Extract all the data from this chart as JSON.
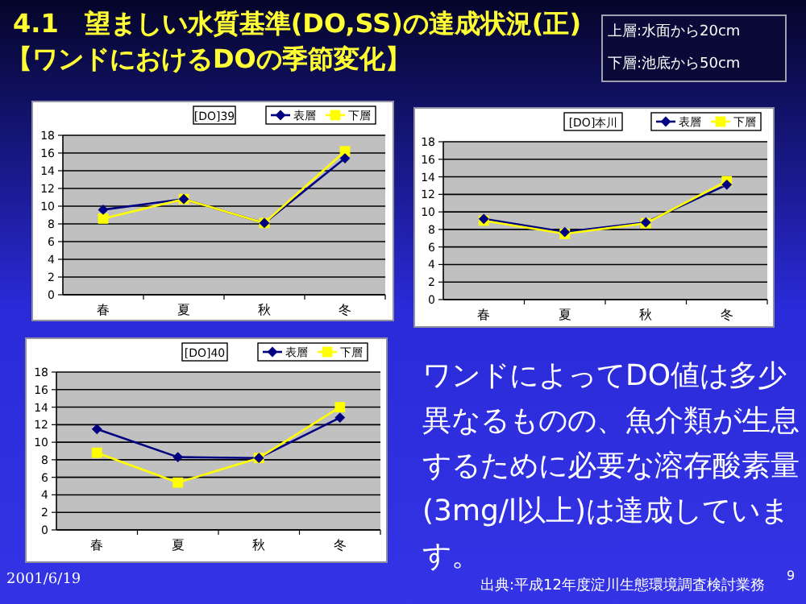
{
  "chart_data": [
    {
      "type": "line",
      "title": "[DO]39",
      "categories": [
        "春",
        "夏",
        "秋",
        "冬"
      ],
      "ylim": [
        0,
        18
      ],
      "yticks": [
        0,
        2,
        4,
        6,
        8,
        10,
        12,
        14,
        16,
        18
      ],
      "grid": "y",
      "legend": "top right",
      "series": [
        {
          "name": "表層",
          "color": "#000080",
          "marker": "diamond",
          "values": [
            9.6,
            10.8,
            8.1,
            15.4
          ]
        },
        {
          "name": "下層",
          "color": "#ffff00",
          "marker": "square",
          "values": [
            8.6,
            10.8,
            8.1,
            16.2
          ]
        }
      ]
    },
    {
      "type": "line",
      "title": "[DO]本川",
      "categories": [
        "春",
        "夏",
        "秋",
        "冬"
      ],
      "ylim": [
        0,
        18
      ],
      "yticks": [
        0,
        2,
        4,
        6,
        8,
        10,
        12,
        14,
        16,
        18
      ],
      "grid": "y",
      "legend": "top right",
      "series": [
        {
          "name": "表層",
          "color": "#000080",
          "marker": "diamond",
          "values": [
            9.2,
            7.7,
            8.8,
            13.1
          ]
        },
        {
          "name": "下層",
          "color": "#ffff00",
          "marker": "square",
          "values": [
            9.0,
            7.5,
            8.7,
            13.5
          ]
        }
      ]
    },
    {
      "type": "line",
      "title": "[DO]40",
      "categories": [
        "春",
        "夏",
        "秋",
        "冬"
      ],
      "ylim": [
        0,
        18
      ],
      "yticks": [
        0,
        2,
        4,
        6,
        8,
        10,
        12,
        14,
        16,
        18
      ],
      "grid": "y",
      "legend": "top right",
      "series": [
        {
          "name": "表層",
          "color": "#000080",
          "marker": "diamond",
          "values": [
            11.5,
            8.3,
            8.2,
            12.8
          ]
        },
        {
          "name": "下層",
          "color": "#ffff00",
          "marker": "square",
          "values": [
            8.8,
            5.4,
            8.2,
            14.0
          ]
        }
      ]
    },
    {
      "type": "other",
      "title": "4.1　望ましい水質基準(DO,SS)の達成状況(正)",
      "subtitle": "【ワンドにおけるDOの季節変化】",
      "annotations": [
        "上層:水面から20cm",
        "下層:池底から50cm",
        "ワンドによってDO値は多少異なるものの、魚介類が生息するために必要な溶存酸素量(3mg/l以上)は達成しています。",
        "2001/6/19",
        "出典:平成12年度淀川生態環境調査検討業務",
        "9"
      ]
    }
  ]
}
